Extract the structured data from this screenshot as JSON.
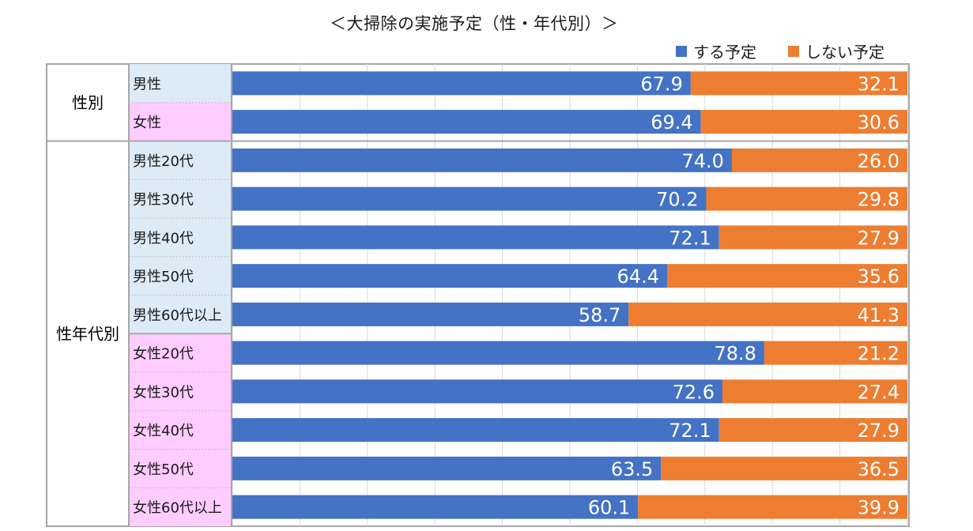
{
  "title": "＜大掃除の実施予定（性・年代別）＞",
  "legend": [
    {
      "label": "する予定",
      "color": "#4472c4"
    },
    {
      "label": "しない予定",
      "color": "#ed7d31"
    }
  ],
  "groups": [
    {
      "label": "性別",
      "rows": [
        0,
        1
      ]
    },
    {
      "label": "性年代別",
      "rows": [
        2,
        11
      ]
    }
  ],
  "chart_data": {
    "type": "bar",
    "orientation": "horizontal",
    "stacked": true,
    "percent": true,
    "title": "＜大掃除の実施予定（性・年代別）＞",
    "xlim": [
      0,
      100
    ],
    "categories": [
      "男性",
      "女性",
      "男性20代",
      "男性30代",
      "男性40代",
      "男性50代",
      "男性60代以上",
      "女性20代",
      "女性30代",
      "女性40代",
      "女性50代",
      "女性60代以上"
    ],
    "category_colors": [
      "#ddebf7",
      "#ffccff",
      "#ddebf7",
      "#ddebf7",
      "#ddebf7",
      "#ddebf7",
      "#ddebf7",
      "#ffccff",
      "#ffccff",
      "#ffccff",
      "#ffccff",
      "#ffccff"
    ],
    "series": [
      {
        "name": "する予定",
        "color": "#4472c4",
        "values": [
          "67.9",
          "69.4",
          "74.0",
          "70.2",
          "72.1",
          "64.4",
          "58.7",
          "78.8",
          "72.6",
          "72.1",
          "63.5",
          "60.1"
        ]
      },
      {
        "name": "しない予定",
        "color": "#ed7d31",
        "values": [
          "32.1",
          "30.6",
          "26.0",
          "29.8",
          "27.9",
          "35.6",
          "41.3",
          "21.2",
          "27.4",
          "27.9",
          "36.5",
          "39.9"
        ]
      }
    ],
    "legend_position": "top-right"
  }
}
